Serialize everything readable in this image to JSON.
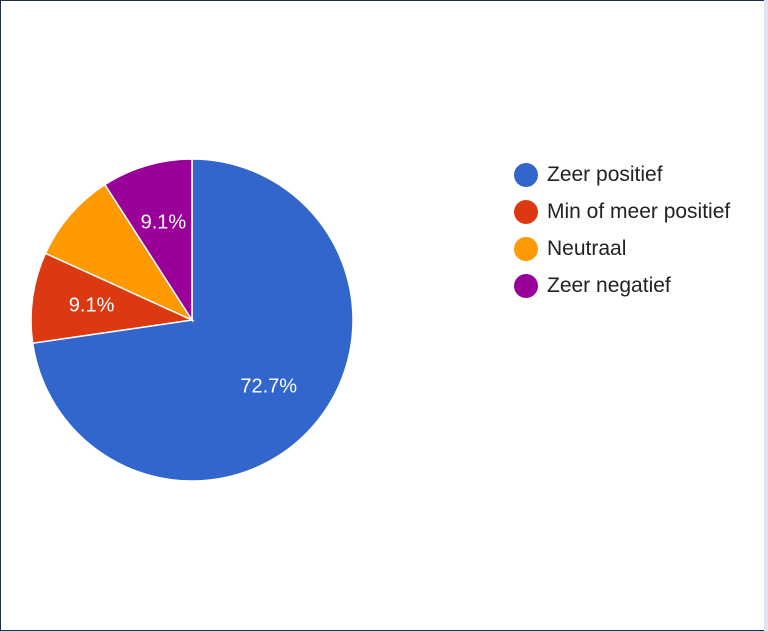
{
  "chart_data": {
    "type": "pie",
    "categories": [
      "Zeer positief",
      "Min of meer positief",
      "Neutraal",
      "Zeer negatief"
    ],
    "values": [
      72.7,
      9.1,
      9.1,
      9.1
    ],
    "data_labels": [
      "72.7%",
      "9.1%",
      "",
      "9.1%"
    ],
    "colors": [
      "#3366cc",
      "#dc3912",
      "#ff9900",
      "#990099"
    ],
    "legend_position": "right"
  }
}
